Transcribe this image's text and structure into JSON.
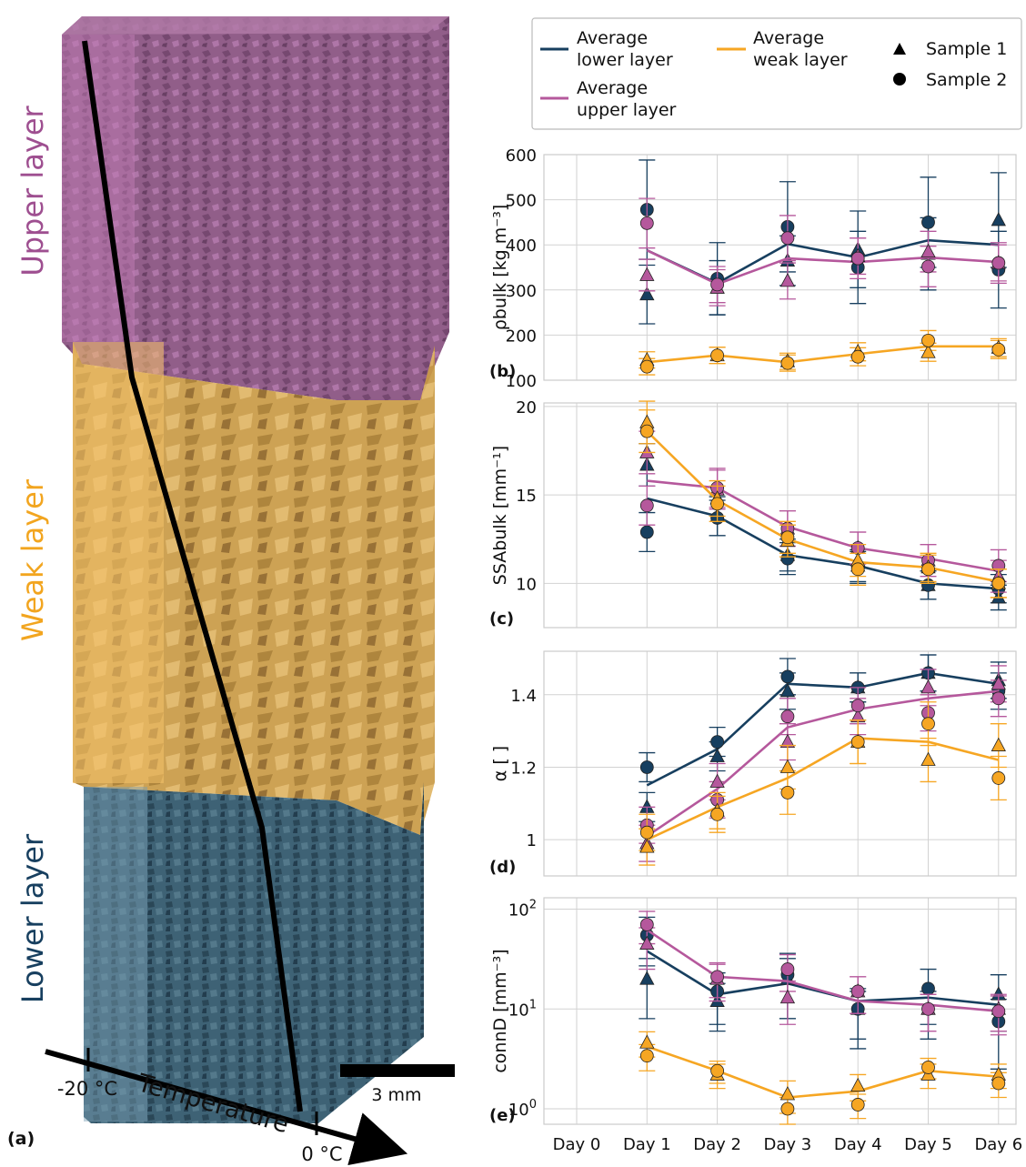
{
  "colors": {
    "lower": "#173f5f",
    "upper": "#b5589c",
    "weak": "#f6a623",
    "upper_block": "#8a4f80",
    "upper_block_top": "#a0609a",
    "weak_block": "#c8963a",
    "lower_block": "#35586b",
    "grid": "#d2d2d2"
  },
  "left_panel": {
    "panel_label": "(a)",
    "layer_labels": {
      "upper": "Upper layer",
      "weak": "Weak layer",
      "lower": "Lower layer"
    },
    "temperature_axis": {
      "label": "Temperature",
      "cold": "-20 °C",
      "warm": "0 °C"
    },
    "scale_bar_label": "3 mm"
  },
  "legend": {
    "lower": "Average\nlower layer",
    "weak": "Average\nweak layer",
    "upper": "Average\nupper layer",
    "sample1": "Sample 1",
    "sample2": "Sample 2"
  },
  "chart_data": [
    {
      "panel": "(b)",
      "type": "line",
      "ylabel": "ρbulk [kg m⁻³]",
      "ylim": [
        100,
        600
      ],
      "yticks": [
        100,
        200,
        300,
        400,
        500,
        600
      ],
      "yscale": "linear",
      "x": [
        "Day 0",
        "Day 1",
        "Day 2",
        "Day 3",
        "Day 4",
        "Day 5",
        "Day 6"
      ],
      "series": [
        {
          "name": "Average lower layer",
          "key": "lower",
          "avg": [
            null,
            388,
            315,
            402,
            372,
            410,
            400
          ],
          "sample1": [
            null,
            290,
            305,
            365,
            390,
            380,
            455
          ],
          "sample1_err": [
            null,
            65,
            60,
            55,
            85,
            80,
            105
          ],
          "sample2": [
            null,
            478,
            325,
            440,
            350,
            450,
            345
          ],
          "sample2_err": [
            null,
            110,
            80,
            100,
            80,
            100,
            85
          ]
        },
        {
          "name": "Average upper layer",
          "key": "upper",
          "avg": [
            null,
            388,
            313,
            370,
            362,
            372,
            362
          ],
          "sample1": [
            null,
            333,
            305,
            320,
            375,
            385,
            360
          ],
          "sample1_err": [
            null,
            35,
            40,
            40,
            40,
            45,
            40
          ],
          "sample2": [
            null,
            448,
            312,
            415,
            370,
            352,
            360
          ],
          "sample2_err": [
            null,
            55,
            40,
            50,
            45,
            45,
            45
          ]
        },
        {
          "name": "Average weak layer",
          "key": "weak",
          "avg": [
            null,
            140,
            155,
            140,
            158,
            175,
            175
          ],
          "sample1": [
            null,
            145,
            155,
            142,
            163,
            162,
            172
          ],
          "sample1_err": [
            null,
            18,
            18,
            18,
            20,
            20,
            20
          ],
          "sample2": [
            null,
            130,
            155,
            138,
            152,
            188,
            168
          ],
          "sample2_err": [
            null,
            18,
            18,
            18,
            20,
            22,
            20
          ]
        }
      ]
    },
    {
      "panel": "(c)",
      "type": "line",
      "ylabel": "SSAbulk [mm⁻¹]",
      "ylim": [
        7.5,
        20.2
      ],
      "yticks": [
        10,
        15,
        20
      ],
      "yscale": "linear",
      "x": [
        "Day 0",
        "Day 1",
        "Day 2",
        "Day 3",
        "Day 4",
        "Day 5",
        "Day 6"
      ],
      "series": [
        {
          "name": "Average lower layer",
          "key": "lower",
          "avg": [
            null,
            14.8,
            13.8,
            11.6,
            11.0,
            10.0,
            9.7
          ],
          "sample1": [
            null,
            16.7,
            13.8,
            11.6,
            11.0,
            9.9,
            9.2
          ],
          "sample1_err": [
            null,
            1.2,
            1.1,
            0.9,
            0.9,
            0.8,
            0.7
          ],
          "sample2": [
            null,
            12.9,
            13.7,
            11.4,
            10.9,
            9.9,
            9.7
          ],
          "sample2_err": [
            null,
            1.1,
            1.0,
            0.9,
            0.9,
            0.8,
            0.8
          ]
        },
        {
          "name": "Average upper layer",
          "key": "upper",
          "avg": [
            null,
            15.8,
            15.4,
            13.2,
            12.0,
            11.4,
            10.7
          ],
          "sample1": [
            null,
            17.4,
            15.3,
            13.1,
            12.0,
            11.3,
            10.4
          ],
          "sample1_err": [
            null,
            1.2,
            1.1,
            1.0,
            0.9,
            0.9,
            0.9
          ],
          "sample2": [
            null,
            14.4,
            15.4,
            13.1,
            12.0,
            11.3,
            11.0
          ],
          "sample2_err": [
            null,
            1.1,
            1.1,
            1.0,
            0.9,
            0.9,
            0.9
          ]
        },
        {
          "name": "Average weak layer",
          "key": "weak",
          "avg": [
            null,
            18.6,
            14.7,
            12.5,
            11.2,
            10.9,
            10.1
          ],
          "sample1": [
            null,
            19.1,
            14.8,
            12.4,
            11.3,
            10.9,
            10.0
          ],
          "sample1_err": [
            null,
            1.2,
            1.0,
            0.9,
            0.9,
            0.8,
            0.8
          ],
          "sample2": [
            null,
            18.6,
            14.5,
            12.6,
            10.8,
            10.8,
            10.0
          ],
          "sample2_err": [
            null,
            1.2,
            1.0,
            0.9,
            0.9,
            0.8,
            0.8
          ]
        }
      ]
    },
    {
      "panel": "(d)",
      "type": "line",
      "ylabel": "α [ ]",
      "ylim": [
        0.9,
        1.52
      ],
      "yticks": [
        1.0,
        1.2,
        1.4
      ],
      "yscale": "linear",
      "x": [
        "Day 0",
        "Day 1",
        "Day 2",
        "Day 3",
        "Day 4",
        "Day 5",
        "Day 6"
      ],
      "series": [
        {
          "name": "Average lower layer",
          "key": "lower",
          "avg": [
            null,
            1.15,
            1.25,
            1.43,
            1.42,
            1.46,
            1.43
          ],
          "sample1": [
            null,
            1.09,
            1.23,
            1.41,
            1.42,
            1.46,
            1.44
          ],
          "sample1_err": [
            null,
            0.04,
            0.04,
            0.05,
            0.04,
            0.05,
            0.05
          ],
          "sample2": [
            null,
            1.2,
            1.27,
            1.45,
            1.42,
            1.46,
            1.41
          ],
          "sample2_err": [
            null,
            0.04,
            0.04,
            0.05,
            0.04,
            0.05,
            0.05
          ]
        },
        {
          "name": "Average upper layer",
          "key": "upper",
          "avg": [
            null,
            1.01,
            1.14,
            1.31,
            1.36,
            1.39,
            1.41
          ],
          "sample1": [
            null,
            0.99,
            1.16,
            1.27,
            1.34,
            1.42,
            1.43
          ],
          "sample1_err": [
            null,
            0.05,
            0.05,
            0.05,
            0.05,
            0.05,
            0.05
          ],
          "sample2": [
            null,
            1.04,
            1.11,
            1.34,
            1.37,
            1.35,
            1.39
          ],
          "sample2_err": [
            null,
            0.05,
            0.05,
            0.05,
            0.05,
            0.05,
            0.05
          ]
        },
        {
          "name": "Average weak layer",
          "key": "weak",
          "avg": [
            null,
            1.0,
            1.09,
            1.17,
            1.28,
            1.27,
            1.22
          ],
          "sample1": [
            null,
            0.98,
            1.08,
            1.2,
            1.27,
            1.22,
            1.26
          ],
          "sample1_err": [
            null,
            0.05,
            0.05,
            0.06,
            0.06,
            0.06,
            0.06
          ],
          "sample2": [
            null,
            1.02,
            1.07,
            1.13,
            1.27,
            1.32,
            1.17
          ],
          "sample2_err": [
            null,
            0.05,
            0.05,
            0.06,
            0.06,
            0.06,
            0.06
          ]
        }
      ]
    },
    {
      "panel": "(e)",
      "type": "line",
      "ylabel": "connD [mm⁻³]",
      "ylim": [
        0.7,
        130
      ],
      "ytick_exponents": [
        0,
        1,
        2
      ],
      "yscale": "log",
      "x": [
        "Day 0",
        "Day 1",
        "Day 2",
        "Day 3",
        "Day 4",
        "Day 5",
        "Day 6"
      ],
      "series": [
        {
          "name": "Average lower layer",
          "key": "lower",
          "avg": [
            null,
            38,
            14,
            18,
            12,
            13,
            11
          ],
          "sample1": [
            null,
            20,
            12,
            20,
            10,
            10,
            14
          ],
          "sample1_err": [
            null,
            12,
            6,
            12,
            5,
            5,
            8
          ],
          "sample2": [
            null,
            55,
            15,
            22,
            10,
            16,
            7.5
          ],
          "sample2_err": [
            null,
            28,
            8,
            14,
            6,
            9,
            5
          ]
        },
        {
          "name": "Average upper layer",
          "key": "upper",
          "avg": [
            null,
            62,
            21,
            19,
            12,
            11,
            9.5
          ],
          "sample1": [
            null,
            45,
            20,
            13,
            15,
            10,
            10
          ],
          "sample1_err": [
            null,
            20,
            8,
            6,
            6,
            4,
            4
          ],
          "sample2": [
            null,
            70,
            21,
            25,
            15,
            10,
            9.5
          ],
          "sample2_err": [
            null,
            25,
            8,
            10,
            6,
            4,
            4
          ]
        },
        {
          "name": "Average weak layer",
          "key": "weak",
          "avg": [
            null,
            4.2,
            2.4,
            1.3,
            1.5,
            2.4,
            2.1
          ],
          "sample1": [
            null,
            4.6,
            2.2,
            1.4,
            1.7,
            2.2,
            2.2
          ],
          "sample1_err": [
            null,
            1.3,
            0.6,
            0.5,
            0.5,
            0.6,
            0.6
          ],
          "sample2": [
            null,
            3.4,
            2.4,
            1.0,
            1.1,
            2.6,
            1.8
          ],
          "sample2_err": [
            null,
            1.0,
            0.6,
            0.3,
            0.3,
            0.6,
            0.5
          ]
        }
      ]
    }
  ]
}
